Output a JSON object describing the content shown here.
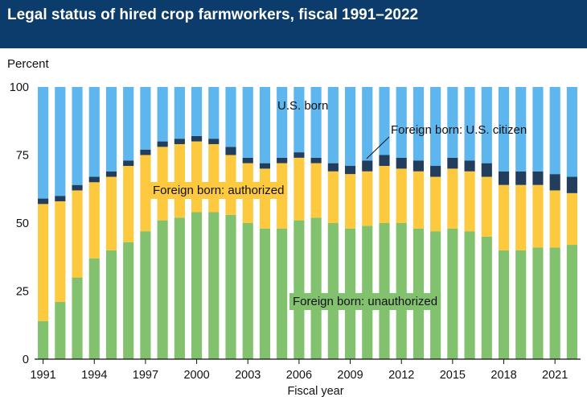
{
  "title": "Legal status of hired crop farmworkers, fiscal 1991–2022",
  "colors": {
    "title_bg": "#0b3c6c",
    "unauthorized": "#82c26e",
    "authorized": "#fdc93e",
    "us_citizen": "#233d5c",
    "us_born": "#5db6ee"
  },
  "chart_data": {
    "type": "bar",
    "stacked": true,
    "title": "Legal status of hired crop farmworkers, fiscal 1991–2022",
    "ylabel": "Percent",
    "xlabel": "Fiscal year",
    "ylim": [
      0,
      100
    ],
    "yticks": [
      0,
      25,
      50,
      75,
      100
    ],
    "xtick_labels": [
      "1991",
      "1994",
      "1997",
      "2000",
      "2003",
      "2006",
      "2009",
      "2012",
      "2015",
      "2018",
      "2021"
    ],
    "grid": false,
    "legend": "none",
    "categories": [
      1991,
      1992,
      1993,
      1994,
      1995,
      1996,
      1997,
      1998,
      1999,
      2000,
      2001,
      2002,
      2003,
      2004,
      2005,
      2006,
      2007,
      2008,
      2009,
      2010,
      2011,
      2012,
      2013,
      2014,
      2015,
      2016,
      2017,
      2018,
      2019,
      2020,
      2021,
      2022
    ],
    "series": [
      {
        "name": "Foreign born: unauthorized",
        "color_key": "unauthorized",
        "values": [
          14,
          21,
          30,
          37,
          40,
          43,
          47,
          51,
          52,
          54,
          54,
          53,
          50,
          48,
          48,
          51,
          52,
          50,
          48,
          49,
          50,
          50,
          48,
          47,
          48,
          47,
          45,
          40,
          40,
          41,
          41,
          42
        ]
      },
      {
        "name": "Foreign born: authorized",
        "color_key": "authorized",
        "values": [
          43,
          37,
          32,
          28,
          27,
          28,
          28,
          27,
          27,
          26,
          25,
          22,
          22,
          22,
          24,
          23,
          20,
          19,
          20,
          20,
          21,
          20,
          21,
          20,
          22,
          22,
          22,
          24,
          24,
          23,
          21,
          19
        ]
      },
      {
        "name": "Foreign born: U.S. citizen",
        "color_key": "us_citizen",
        "values": [
          2,
          2,
          2,
          2,
          2,
          2,
          2,
          2,
          2,
          2,
          2,
          3,
          2,
          2,
          2,
          2,
          2,
          3,
          3,
          4,
          4,
          4,
          4,
          4,
          4,
          4,
          5,
          5,
          5,
          5,
          6,
          6
        ]
      },
      {
        "name": "U.S. born",
        "color_key": "us_born",
        "values": [
          41,
          40,
          36,
          33,
          31,
          27,
          23,
          20,
          19,
          18,
          19,
          22,
          26,
          28,
          26,
          24,
          26,
          28,
          29,
          27,
          25,
          26,
          27,
          29,
          26,
          27,
          28,
          31,
          31,
          31,
          32,
          33
        ]
      }
    ],
    "annotations": [
      {
        "text": "U.S. born",
        "series": "U.S. born"
      },
      {
        "text": "Foreign born: U.S. citizen",
        "series": "Foreign born: U.S. citizen"
      },
      {
        "text": "Foreign born: authorized",
        "series": "Foreign born: authorized"
      },
      {
        "text": "Foreign born: unauthorized",
        "series": "Foreign born: unauthorized"
      }
    ]
  }
}
